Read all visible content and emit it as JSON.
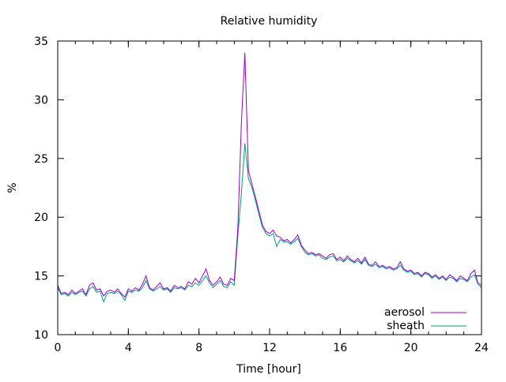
{
  "chart_data": {
    "type": "line",
    "title": "Relative humidity",
    "xlabel": "Time [hour]",
    "ylabel": "%",
    "xlim": [
      0,
      24
    ],
    "ylim": [
      10,
      35
    ],
    "xticks": [
      0,
      4,
      8,
      12,
      16,
      20,
      24
    ],
    "xtick_labels": [
      "0",
      "4",
      "8",
      "12",
      "16",
      "20",
      "24"
    ],
    "x_minor_step": 1,
    "yticks": [
      10,
      15,
      20,
      25,
      30,
      35
    ],
    "ytick_labels": [
      "10",
      "15",
      "20",
      "25",
      "30",
      "35"
    ],
    "grid": false,
    "legend_position": "bottom-right",
    "x_start": 0,
    "x_step": 0.2,
    "series": [
      {
        "name": "aerosol",
        "color": "#9400d3",
        "values": [
          14.2,
          13.5,
          13.6,
          13.4,
          13.8,
          13.5,
          13.7,
          13.9,
          13.4,
          14.2,
          14.4,
          13.8,
          13.9,
          13.3,
          13.7,
          13.8,
          13.6,
          13.9,
          13.5,
          13.2,
          13.9,
          13.7,
          14.0,
          13.8,
          14.3,
          15.0,
          14.0,
          13.8,
          14.1,
          14.4,
          13.9,
          14.0,
          13.7,
          14.2,
          14.0,
          14.1,
          13.9,
          14.5,
          14.3,
          14.8,
          14.4,
          15.0,
          15.6,
          14.6,
          14.2,
          14.5,
          14.9,
          14.3,
          14.2,
          14.8,
          14.6,
          19.0,
          28.0,
          34.0,
          24.0,
          22.8,
          21.7,
          20.5,
          19.3,
          18.8,
          18.6,
          18.9,
          18.4,
          18.3,
          18.0,
          18.1,
          17.8,
          18.1,
          18.5,
          17.6,
          17.2,
          16.9,
          17.0,
          16.8,
          16.9,
          16.7,
          16.5,
          16.8,
          16.9,
          16.4,
          16.6,
          16.3,
          16.7,
          16.4,
          16.2,
          16.5,
          16.1,
          16.6,
          16.0,
          15.9,
          16.2,
          15.8,
          15.9,
          15.7,
          15.8,
          15.6,
          15.7,
          16.2,
          15.6,
          15.4,
          15.5,
          15.2,
          15.3,
          15.0,
          15.3,
          15.2,
          14.9,
          15.1,
          14.8,
          15.0,
          14.7,
          15.1,
          14.9,
          14.6,
          15.0,
          14.8,
          14.6,
          15.2,
          15.5,
          14.4,
          14.2
        ]
      },
      {
        "name": "sheath",
        "color": "#009e73",
        "values": [
          14.0,
          13.4,
          13.5,
          13.3,
          13.6,
          13.4,
          13.6,
          13.7,
          13.3,
          13.9,
          14.1,
          13.6,
          13.7,
          12.8,
          13.5,
          13.6,
          13.5,
          13.7,
          13.4,
          12.9,
          13.7,
          13.6,
          13.8,
          13.7,
          14.0,
          14.6,
          13.9,
          13.7,
          13.9,
          14.1,
          13.8,
          13.9,
          13.6,
          14.0,
          13.9,
          14.0,
          13.8,
          14.2,
          14.1,
          14.4,
          14.2,
          14.6,
          15.0,
          14.4,
          14.0,
          14.3,
          14.6,
          14.1,
          14.0,
          14.5,
          14.2,
          18.4,
          22.0,
          26.3,
          23.3,
          22.5,
          21.4,
          20.2,
          19.1,
          18.6,
          18.4,
          18.6,
          17.5,
          18.1,
          17.9,
          17.9,
          17.7,
          17.9,
          18.2,
          17.5,
          17.0,
          16.8,
          16.9,
          16.7,
          16.8,
          16.5,
          16.4,
          16.6,
          16.7,
          16.3,
          16.4,
          16.2,
          16.5,
          16.3,
          16.1,
          16.3,
          16.0,
          16.4,
          15.9,
          15.8,
          16.0,
          15.7,
          15.8,
          15.6,
          15.7,
          15.5,
          15.6,
          15.9,
          15.5,
          15.3,
          15.4,
          15.1,
          15.2,
          14.9,
          15.2,
          15.1,
          14.8,
          15.0,
          14.7,
          14.9,
          14.6,
          14.9,
          14.8,
          14.5,
          14.8,
          14.7,
          14.5,
          14.9,
          15.1,
          14.3,
          14.0
        ]
      }
    ]
  }
}
